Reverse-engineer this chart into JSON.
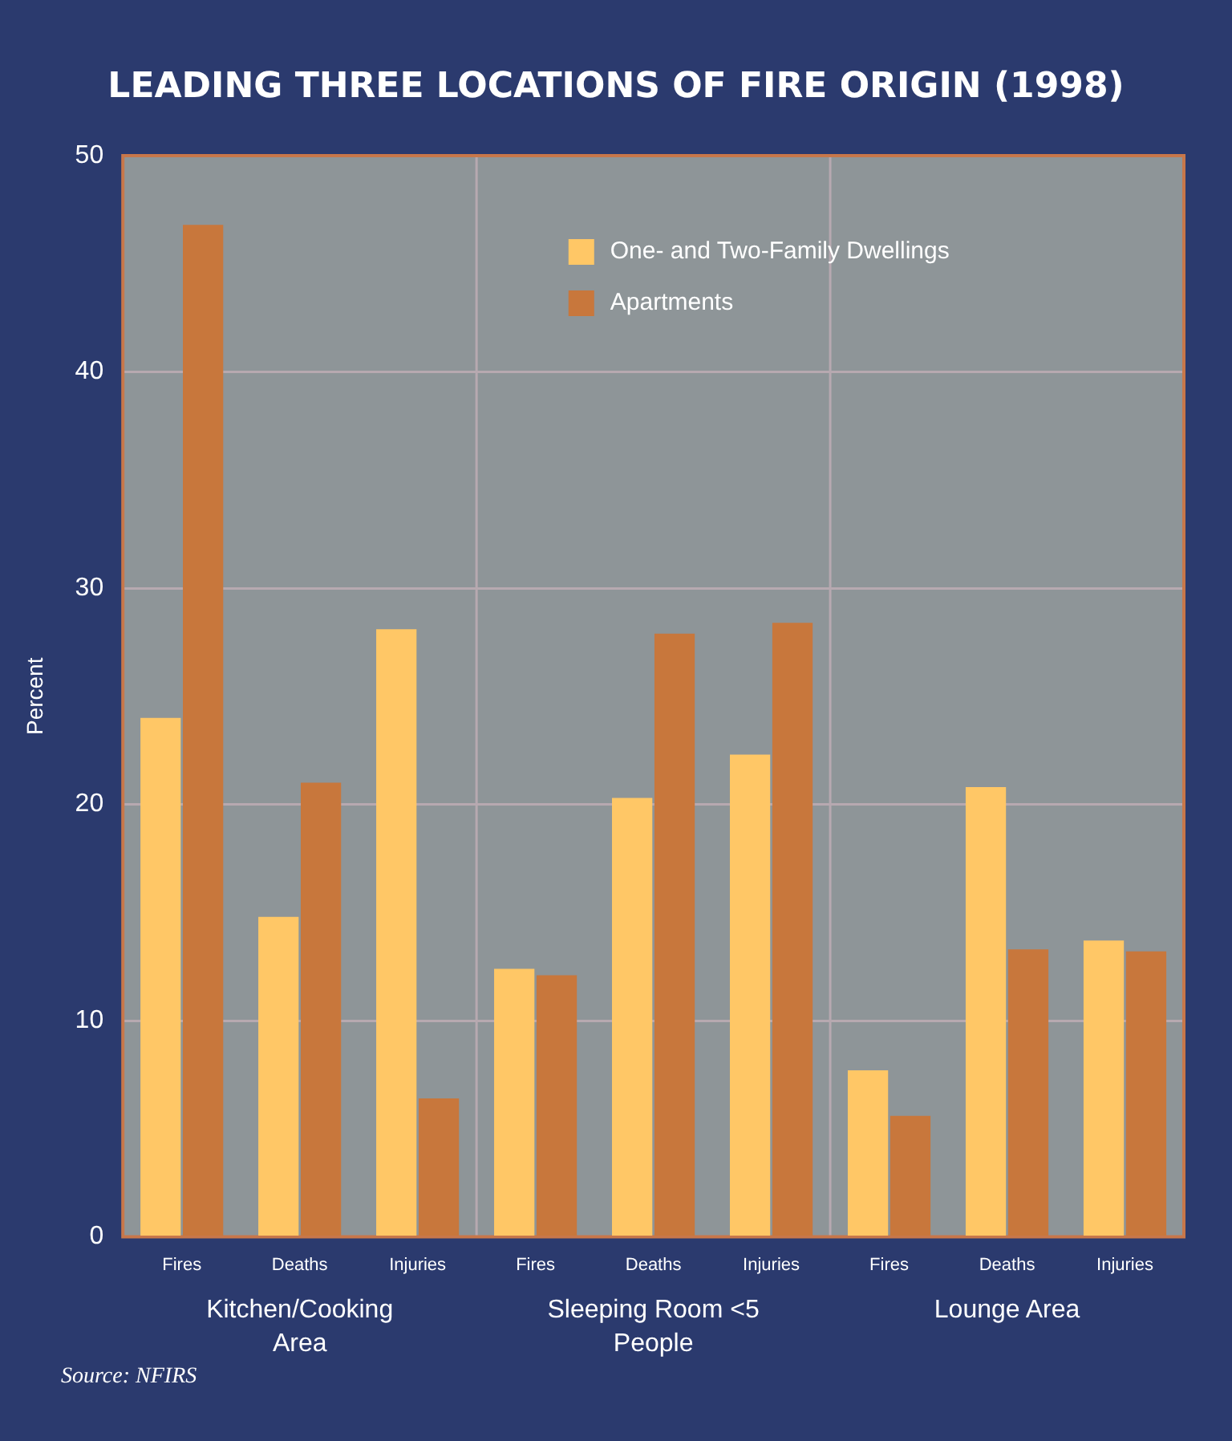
{
  "chart_data": {
    "type": "bar",
    "title": "LEADING THREE LOCATIONS OF FIRE ORIGIN (1998)",
    "ylabel": "Percent",
    "categories": [
      "Fires",
      "Deaths",
      "Injuries",
      "Fires",
      "Deaths",
      "Injuries",
      "Fires",
      "Deaths",
      "Injuries"
    ],
    "series": [
      {
        "name": "One- and Two-Family Dwellings",
        "color": "#ffc766",
        "values": [
          24.0,
          14.8,
          28.1,
          12.4,
          20.3,
          22.3,
          7.7,
          20.8,
          13.7
        ]
      },
      {
        "name": "Apartments",
        "color": "#c8773c",
        "values": [
          46.8,
          21.0,
          6.4,
          12.1,
          27.9,
          28.4,
          5.6,
          13.3,
          13.2
        ]
      }
    ],
    "ylim": [
      0,
      50
    ],
    "yticks": [
      0,
      10,
      20,
      30,
      40,
      50
    ],
    "grid": true,
    "legend": "top right",
    "annotations": [
      "Kitchen/Cooking Area",
      "Sleeping Room <5 People",
      "Lounge Area",
      "Source: NFIRS"
    ]
  }
}
